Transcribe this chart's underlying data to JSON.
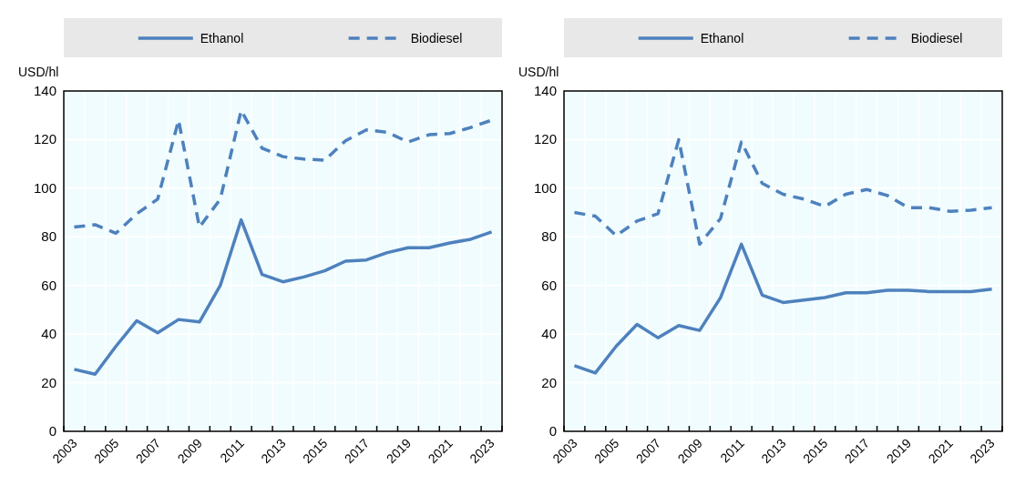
{
  "chart_data": [
    {
      "type": "line",
      "ylabel": "USD/hl",
      "categories": [
        "2003",
        null,
        "2005",
        null,
        "2007",
        null,
        "2009",
        null,
        "2011",
        null,
        "2013",
        null,
        "2015",
        null,
        "2017",
        null,
        "2019",
        null,
        "2021",
        null,
        "2023"
      ],
      "ylim": [
        0,
        140
      ],
      "yticks": [
        0,
        20,
        40,
        60,
        80,
        100,
        120,
        140
      ],
      "grid": true,
      "legend": "top",
      "series": [
        {
          "name": "Ethanol",
          "color": "#4e81bd",
          "line_style": "solid",
          "values": [
            25.5,
            23.5,
            35,
            45.5,
            40.5,
            46,
            45,
            60,
            87,
            64.5,
            61.5,
            63.5,
            66,
            70,
            70.5,
            73.5,
            75.5,
            75.5,
            77.5,
            79,
            82
          ]
        },
        {
          "name": "Biodiesel",
          "color": "#4e81bd",
          "line_style": "dashed",
          "values": [
            84,
            85,
            81.5,
            89.5,
            95.5,
            128,
            84,
            95.5,
            132,
            116.5,
            113,
            112,
            111.5,
            119.5,
            124,
            123,
            119,
            122,
            122.5,
            125,
            128
          ]
        }
      ]
    },
    {
      "type": "line",
      "ylabel": "USD/hl",
      "categories": [
        "2003",
        null,
        "2005",
        null,
        "2007",
        null,
        "2009",
        null,
        "2011",
        null,
        "2013",
        null,
        "2015",
        null,
        "2017",
        null,
        "2019",
        null,
        "2021",
        null,
        "2023"
      ],
      "ylim": [
        0,
        140
      ],
      "yticks": [
        0,
        20,
        40,
        60,
        80,
        100,
        120,
        140
      ],
      "grid": true,
      "legend": "top",
      "series": [
        {
          "name": "Ethanol",
          "color": "#4e81bd",
          "line_style": "solid",
          "values": [
            27,
            24,
            35,
            44,
            38.5,
            43.5,
            41.5,
            55,
            77,
            56,
            53,
            54,
            55,
            57,
            57,
            58,
            58,
            57.5,
            57.5,
            57.5,
            58.5
          ]
        },
        {
          "name": "Biodiesel",
          "color": "#4e81bd",
          "line_style": "dashed",
          "values": [
            90,
            88.5,
            80.5,
            86.5,
            89.5,
            120,
            77,
            87.5,
            119,
            102,
            97.5,
            95.5,
            92.5,
            97.5,
            99.5,
            97,
            92,
            92,
            90.5,
            91,
            92
          ]
        }
      ]
    }
  ]
}
